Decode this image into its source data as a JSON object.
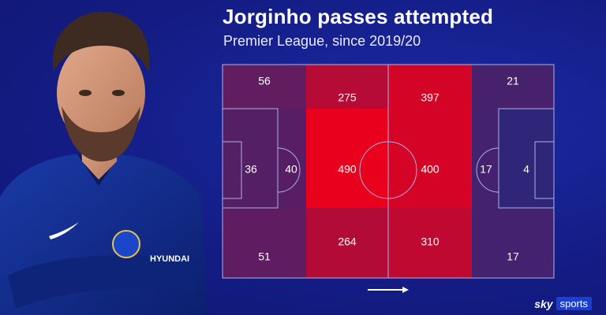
{
  "title": "Jorginho passes attempted",
  "subtitle": "Premier League, since 2019/20",
  "brand": {
    "sky": "sky",
    "sports": "sports"
  },
  "colors": {
    "background": "#15208a",
    "low": "#1e2a82",
    "high": "#e8001c",
    "lines": "#aab2e6"
  },
  "chart_data": {
    "type": "heatmap",
    "title": "Jorginho passes attempted",
    "subtitle": "Premier League, since 2019/20",
    "direction_of_play": "left-to-right",
    "zones": [
      {
        "name": "defensive-wide-top",
        "value": 56
      },
      {
        "name": "defensive-half-top",
        "value": 275
      },
      {
        "name": "attacking-half-top",
        "value": 397
      },
      {
        "name": "attacking-wide-top",
        "value": 21
      },
      {
        "name": "own-box",
        "value": 36
      },
      {
        "name": "own-box-edge",
        "value": 40
      },
      {
        "name": "defensive-half-central",
        "value": 490
      },
      {
        "name": "attacking-half-central",
        "value": 400
      },
      {
        "name": "opposition-box-edge",
        "value": 17
      },
      {
        "name": "opposition-box",
        "value": 4
      },
      {
        "name": "defensive-wide-bottom",
        "value": 51
      },
      {
        "name": "defensive-half-bottom",
        "value": 264
      },
      {
        "name": "attacking-half-bottom",
        "value": 310
      },
      {
        "name": "attacking-wide-bottom",
        "value": 17
      }
    ]
  }
}
